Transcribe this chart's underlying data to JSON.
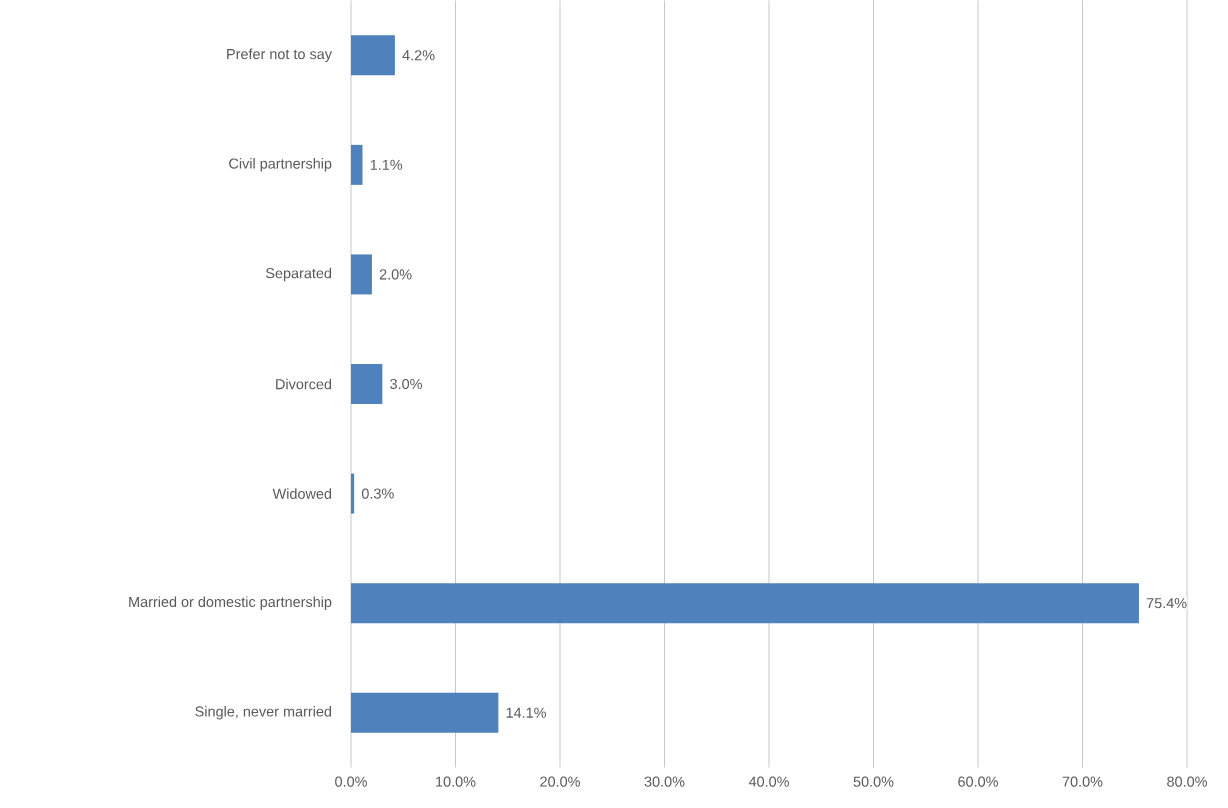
{
  "chart_data": {
    "type": "bar",
    "orientation": "horizontal",
    "categories": [
      "Prefer not to say",
      "Civil partnership",
      "Separated",
      "Divorced",
      "Widowed",
      "Married or domestic partnership",
      "Single, never married"
    ],
    "values": [
      4.2,
      1.1,
      2.0,
      3.0,
      0.3,
      75.4,
      14.1
    ],
    "value_labels": [
      "4.2%",
      "1.1%",
      "2.0%",
      "3.0%",
      "0.3%",
      "75.4%",
      "14.1%"
    ],
    "color": "#4f81bd",
    "xlim": [
      0,
      80
    ],
    "xticks": [
      {
        "value": 0,
        "label": "0.0%"
      },
      {
        "value": 10,
        "label": "10.0%"
      },
      {
        "value": 20,
        "label": "20.0%"
      },
      {
        "value": 30,
        "label": "30.0%"
      },
      {
        "value": 40,
        "label": "40.0%"
      },
      {
        "value": 50,
        "label": "50.0%"
      },
      {
        "value": 60,
        "label": "60.0%"
      },
      {
        "value": 70,
        "label": "70.0%"
      },
      {
        "value": 80,
        "label": "80.0%"
      }
    ],
    "grid": "x"
  }
}
